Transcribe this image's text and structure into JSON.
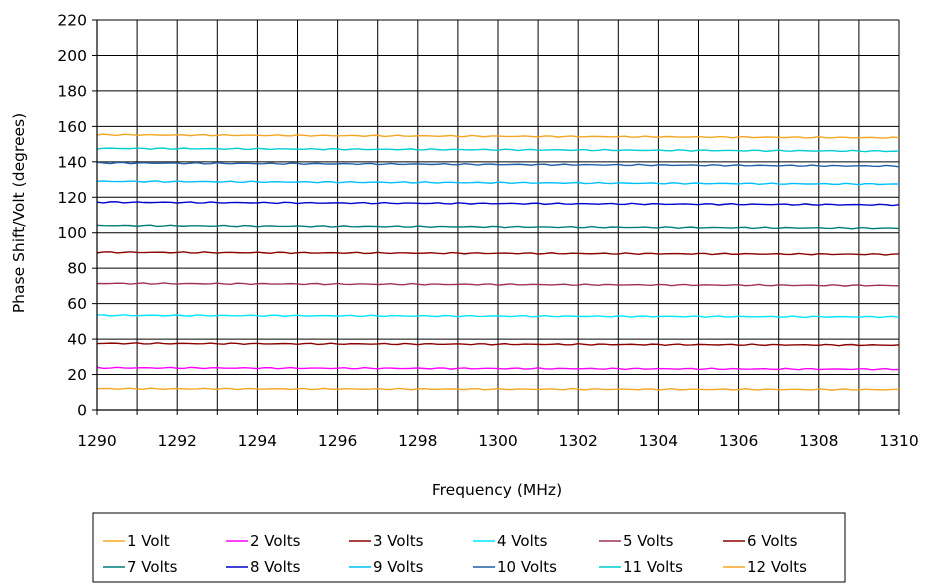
{
  "chart_data": {
    "type": "line",
    "title": "",
    "xlabel": "Frequency (MHz)",
    "ylabel": "Phase Shift/Volt (degrees)",
    "xlim": [
      1290,
      1310
    ],
    "ylim": [
      0,
      220
    ],
    "x_ticks": [
      1290,
      1292,
      1294,
      1296,
      1298,
      1300,
      1302,
      1304,
      1306,
      1308,
      1310
    ],
    "x_minor_step": 1,
    "y_ticks": [
      0,
      20,
      40,
      60,
      80,
      100,
      120,
      140,
      160,
      180,
      200,
      220
    ],
    "grid": true,
    "legend_position": "bottom",
    "x": [
      1290,
      1310
    ],
    "series": [
      {
        "name": "1 Volt",
        "color": "#F5A623",
        "values": [
          12.0,
          11.5
        ]
      },
      {
        "name": "2 Volts",
        "color": "#FF00FF",
        "values": [
          23.8,
          23.0
        ]
      },
      {
        "name": "3 Volts",
        "color": "#8B0000",
        "values": [
          37.6,
          36.6
        ]
      },
      {
        "name": "4 Volts",
        "color": "#00E5FF",
        "values": [
          53.4,
          52.5
        ]
      },
      {
        "name": "5 Volts",
        "color": "#A0305A",
        "values": [
          71.4,
          70.2
        ]
      },
      {
        "name": "6 Volts",
        "color": "#8B0000",
        "values": [
          89.0,
          87.8
        ]
      },
      {
        "name": "7 Volts",
        "color": "#007B7B",
        "values": [
          104.0,
          102.5
        ]
      },
      {
        "name": "8 Volts",
        "color": "#0000CC",
        "values": [
          117.2,
          115.7
        ]
      },
      {
        "name": "9 Volts",
        "color": "#00BFFF",
        "values": [
          129.0,
          127.4
        ]
      },
      {
        "name": "10 Volts",
        "color": "#1F5FA8",
        "values": [
          139.4,
          137.6
        ]
      },
      {
        "name": "11 Volts",
        "color": "#00CED1",
        "values": [
          147.6,
          146.0
        ]
      },
      {
        "name": "12 Volts",
        "color": "#F5A623",
        "values": [
          155.3,
          153.6
        ]
      }
    ]
  }
}
